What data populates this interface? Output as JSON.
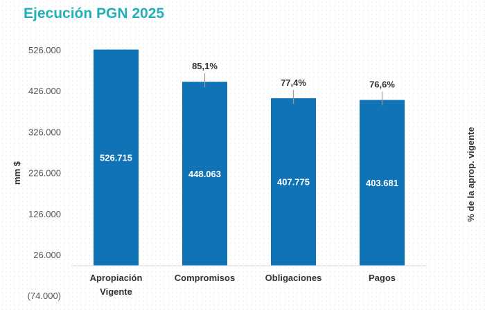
{
  "chart_data": {
    "type": "bar",
    "title": "Ejecución PGN 2025",
    "ylabel": "mm $",
    "y2label": "% de la aprop. vigente",
    "ylim": [
      -74000,
      526000
    ],
    "yticks": [
      "526.000",
      "426.000",
      "326.000",
      "226.000",
      "126.000",
      "26.000",
      "(74.000)"
    ],
    "ytick_values": [
      526000,
      426000,
      326000,
      226000,
      126000,
      26000,
      -74000
    ],
    "categories": [
      [
        "Apropiación",
        "Vigente"
      ],
      [
        "Compromisos"
      ],
      [
        "Obligaciones"
      ],
      [
        "Pagos"
      ]
    ],
    "values": [
      526715,
      448063,
      407775,
      403681
    ],
    "value_labels": [
      "526.715",
      "448.063",
      "407.775",
      "403.681"
    ],
    "pct_labels": [
      "",
      "85,1%",
      "77,4%",
      "76,6%"
    ],
    "bar_color": "#0f73b6",
    "title_color": "#1fb0b8",
    "grid": false
  }
}
